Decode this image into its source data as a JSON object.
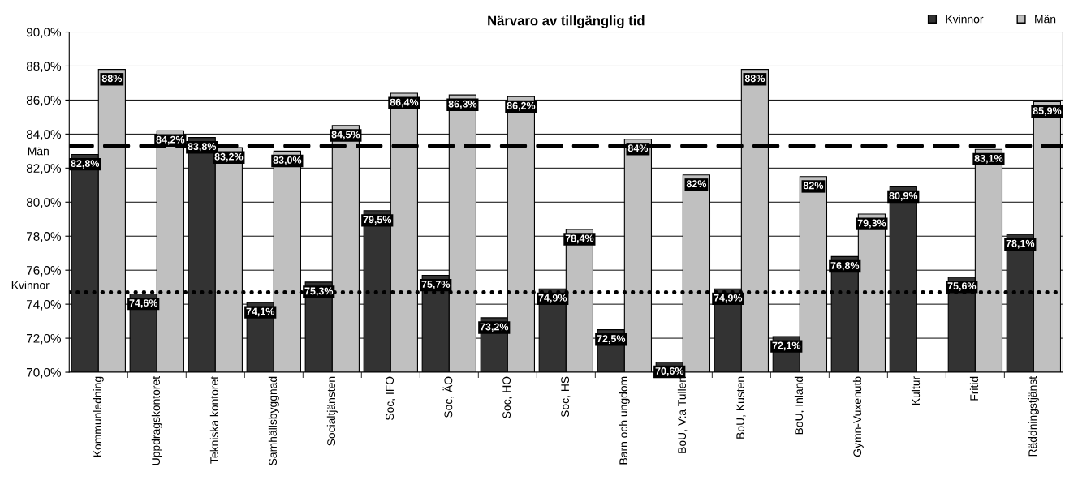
{
  "chart_data": {
    "type": "bar",
    "title": "Närvaro av tillgänglig tid",
    "categories": [
      "Kommunledning",
      "Uppdragskontoret",
      "Tekniska kontoret",
      "Samhällsbyggnad",
      "Socialtjänsten",
      "Soc, IFO",
      "Soc, ÄO",
      "Soc, HO",
      "Soc, HS",
      "Barn och ungdom",
      "BoU, V:a Tullen",
      "BoU, Kusten",
      "BoU, Inland",
      "Gymn-Vuxenutb",
      "Kultur",
      "Fritid",
      "Räddningstjänst"
    ],
    "series": [
      {
        "name": "Kvinnor",
        "color": "#333333",
        "values": [
          82.8,
          74.6,
          83.8,
          74.1,
          75.3,
          79.5,
          75.7,
          73.2,
          74.9,
          72.5,
          70.6,
          74.9,
          72.1,
          76.8,
          80.9,
          75.6,
          78.1
        ],
        "value_labels": [
          "82,8%",
          "74,6%",
          "83,8%",
          "74,1%",
          "75,3%",
          "79,5%",
          "75,7%",
          "73,2%",
          "74,9%",
          "72,5%",
          "70,6%",
          "74,9%",
          "72,1%",
          "76,8%",
          "80,9%",
          "75,6%",
          "78,1%"
        ]
      },
      {
        "name": "Män",
        "color": "#c0c0c0",
        "values": [
          87.8,
          84.2,
          83.2,
          83.0,
          84.5,
          86.4,
          86.3,
          86.2,
          78.4,
          83.7,
          81.6,
          87.8,
          81.5,
          79.3,
          null,
          83.1,
          85.9
        ],
        "value_labels": [
          "88%",
          "84,2%",
          "83,2%",
          "83,0%",
          "84,5%",
          "86,4%",
          "86,3%",
          "86,2%",
          "78,4%",
          "84%",
          "82%",
          "88%",
          "82%",
          "79,3%",
          null,
          "83,1%",
          "85,9%"
        ]
      }
    ],
    "ylim": [
      70,
      90
    ],
    "yticks": [
      {
        "value": 70,
        "label": "70,0%"
      },
      {
        "value": 72,
        "label": "72,0%"
      },
      {
        "value": 74,
        "label": "74,0%"
      },
      {
        "value": 76,
        "label": "76,0%"
      },
      {
        "value": 78,
        "label": "78,0%"
      },
      {
        "value": 80,
        "label": "80,0%"
      },
      {
        "value": 82,
        "label": "82,0%"
      },
      {
        "value": 84,
        "label": "84,0%"
      },
      {
        "value": 86,
        "label": "86,0%"
      },
      {
        "value": 88,
        "label": "88,0%"
      },
      {
        "value": 90,
        "label": "90,0%"
      }
    ],
    "ref_lines": [
      {
        "axis": "y",
        "value": 83.3,
        "label": "Män",
        "color": "#000000",
        "line_style": "dashed"
      },
      {
        "axis": "y",
        "value": 74.7,
        "label": "Kvinnor",
        "color": "#000000",
        "line_style": "dotted"
      }
    ],
    "grid": "y",
    "legend": "top right"
  }
}
